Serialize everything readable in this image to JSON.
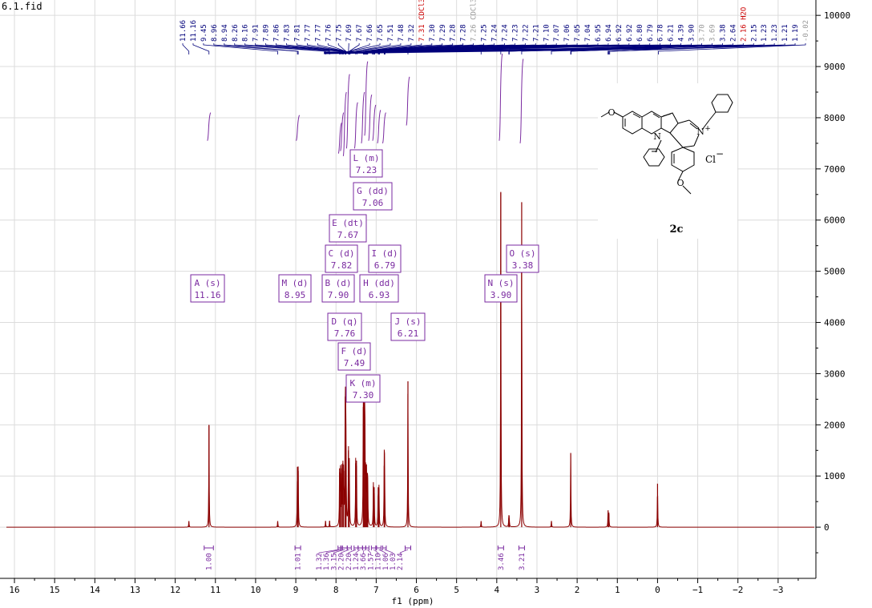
{
  "file_title": "6.1.fid",
  "chart_data": {
    "type": "line",
    "title": "6.1.fid",
    "xlabel": "f1 (ppm)",
    "ylabel": "",
    "xlim": [
      16.2,
      -3.9
    ],
    "x_reversed": true,
    "ylim": [
      -1000,
      10300
    ],
    "x_ticks": [
      16,
      15,
      14,
      13,
      12,
      11,
      10,
      9,
      8,
      7,
      6,
      5,
      4,
      3,
      2,
      1,
      0,
      -1,
      -2,
      -3
    ],
    "x_tick_labels": [
      "16",
      "15",
      "14",
      "13",
      "12",
      "11",
      "10",
      "9",
      "8",
      "7",
      "6",
      "5",
      "4",
      "3",
      "2",
      "1",
      "0",
      "−1",
      "−2",
      "−3"
    ],
    "y_ticks": [
      10000,
      9000,
      8000,
      7000,
      6000,
      5000,
      4000,
      3000,
      2000,
      1000,
      0
    ],
    "y_tick_labels": [
      "10000",
      "9000",
      "8000",
      "7000",
      "6000",
      "5000",
      "4000",
      "3000",
      "2000",
      "1000",
      "0"
    ],
    "grid": true,
    "colors": {
      "spectrum": "#8b0000",
      "integral": "#7a2aa0",
      "multiplet_box": "#7a2aa0",
      "peak_label": "#00007a",
      "peak_label_red": "#cc0000",
      "peak_label_gray": "#999999",
      "grid": "#dcdcdc"
    },
    "series": [
      {
        "peaks": [
          {
            "ppm": 11.66,
            "height": 120
          },
          {
            "ppm": 11.16,
            "height": 2000
          },
          {
            "ppm": 9.45,
            "height": 120
          },
          {
            "ppm": 8.96,
            "height": 1180
          },
          {
            "ppm": 8.94,
            "height": 1100
          },
          {
            "ppm": 8.26,
            "height": 120
          },
          {
            "ppm": 8.16,
            "height": 120
          },
          {
            "ppm": 7.91,
            "height": 1150
          },
          {
            "ppm": 7.89,
            "height": 1050
          },
          {
            "ppm": 7.86,
            "height": 1150
          },
          {
            "ppm": 7.83,
            "height": 1250
          },
          {
            "ppm": 7.81,
            "height": 1100
          },
          {
            "ppm": 7.77,
            "height": 2550
          },
          {
            "ppm": 7.76,
            "height": 1600
          },
          {
            "ppm": 7.75,
            "height": 1250
          },
          {
            "ppm": 7.69,
            "height": 1500
          },
          {
            "ppm": 7.67,
            "height": 1350
          },
          {
            "ppm": 7.51,
            "height": 1250
          },
          {
            "ppm": 7.49,
            "height": 1300
          },
          {
            "ppm": 7.32,
            "height": 2350
          },
          {
            "ppm": 7.31,
            "height": 1800
          },
          {
            "ppm": 7.29,
            "height": 2050
          },
          {
            "ppm": 7.28,
            "height": 1500
          },
          {
            "ppm": 7.26,
            "height": 1100
          },
          {
            "ppm": 7.24,
            "height": 950
          },
          {
            "ppm": 7.22,
            "height": 800
          },
          {
            "ppm": 7.21,
            "height": 700
          },
          {
            "ppm": 7.07,
            "height": 800
          },
          {
            "ppm": 7.05,
            "height": 780
          },
          {
            "ppm": 6.95,
            "height": 780
          },
          {
            "ppm": 6.93,
            "height": 760
          },
          {
            "ppm": 6.8,
            "height": 1200
          },
          {
            "ppm": 6.79,
            "height": 1100
          },
          {
            "ppm": 6.21,
            "height": 2850
          },
          {
            "ppm": 4.39,
            "height": 120
          },
          {
            "ppm": 3.9,
            "height": 6550
          },
          {
            "ppm": 3.7,
            "height": 180
          },
          {
            "ppm": 3.69,
            "height": 160
          },
          {
            "ppm": 3.38,
            "height": 6350
          },
          {
            "ppm": 2.64,
            "height": 120
          },
          {
            "ppm": 2.16,
            "height": 1450
          },
          {
            "ppm": 1.23,
            "height": 330
          },
          {
            "ppm": 1.21,
            "height": 260
          },
          {
            "ppm": 0.0,
            "height": 850
          }
        ]
      }
    ],
    "peak_labels": [
      {
        "text": "11.66",
        "ppm": 11.66,
        "color": "normal"
      },
      {
        "text": "11.16",
        "ppm": 11.16,
        "color": "normal"
      },
      {
        "text": "9.45",
        "ppm": 9.45,
        "color": "normal"
      },
      {
        "text": "8.96",
        "ppm": 8.96,
        "color": "normal"
      },
      {
        "text": "8.94",
        "ppm": 8.94,
        "color": "normal"
      },
      {
        "text": "8.26",
        "ppm": 8.26,
        "color": "normal"
      },
      {
        "text": "8.16",
        "ppm": 8.16,
        "color": "normal"
      },
      {
        "text": "7.91",
        "ppm": 7.91,
        "color": "normal"
      },
      {
        "text": "7.89",
        "ppm": 7.89,
        "color": "normal"
      },
      {
        "text": "7.86",
        "ppm": 7.86,
        "color": "normal"
      },
      {
        "text": "7.83",
        "ppm": 7.83,
        "color": "normal"
      },
      {
        "text": "7.81",
        "ppm": 7.81,
        "color": "normal"
      },
      {
        "text": "7.77",
        "ppm": 7.77,
        "color": "normal"
      },
      {
        "text": "7.77",
        "ppm": 7.77,
        "color": "normal"
      },
      {
        "text": "7.76",
        "ppm": 7.76,
        "color": "normal"
      },
      {
        "text": "7.75",
        "ppm": 7.75,
        "color": "normal"
      },
      {
        "text": "7.69",
        "ppm": 7.69,
        "color": "normal"
      },
      {
        "text": "7.67",
        "ppm": 7.67,
        "color": "normal"
      },
      {
        "text": "7.66",
        "ppm": 7.66,
        "color": "normal"
      },
      {
        "text": "7.65",
        "ppm": 7.65,
        "color": "normal"
      },
      {
        "text": "7.51",
        "ppm": 7.51,
        "color": "normal"
      },
      {
        "text": "7.48",
        "ppm": 7.48,
        "color": "normal"
      },
      {
        "text": "7.32",
        "ppm": 7.32,
        "color": "normal"
      },
      {
        "text": "7.31 CDCl3",
        "ppm": 7.31,
        "color": "red"
      },
      {
        "text": "7.30",
        "ppm": 7.3,
        "color": "normal"
      },
      {
        "text": "7.29",
        "ppm": 7.29,
        "color": "normal"
      },
      {
        "text": "7.28",
        "ppm": 7.28,
        "color": "normal"
      },
      {
        "text": "7.28",
        "ppm": 7.28,
        "color": "normal"
      },
      {
        "text": "7.26 CDCl3",
        "ppm": 7.26,
        "color": "gray"
      },
      {
        "text": "7.25",
        "ppm": 7.25,
        "color": "normal"
      },
      {
        "text": "7.24",
        "ppm": 7.24,
        "color": "normal"
      },
      {
        "text": "7.24",
        "ppm": 7.24,
        "color": "normal"
      },
      {
        "text": "7.23",
        "ppm": 7.23,
        "color": "normal"
      },
      {
        "text": "7.22",
        "ppm": 7.22,
        "color": "normal"
      },
      {
        "text": "7.21",
        "ppm": 7.21,
        "color": "normal"
      },
      {
        "text": "7.10",
        "ppm": 7.1,
        "color": "normal"
      },
      {
        "text": "7.07",
        "ppm": 7.07,
        "color": "normal"
      },
      {
        "text": "7.06",
        "ppm": 7.06,
        "color": "normal"
      },
      {
        "text": "7.05",
        "ppm": 7.05,
        "color": "normal"
      },
      {
        "text": "7.04",
        "ppm": 7.04,
        "color": "normal"
      },
      {
        "text": "6.95",
        "ppm": 6.95,
        "color": "normal"
      },
      {
        "text": "6.94",
        "ppm": 6.94,
        "color": "normal"
      },
      {
        "text": "6.92",
        "ppm": 6.92,
        "color": "normal"
      },
      {
        "text": "6.92",
        "ppm": 6.92,
        "color": "normal"
      },
      {
        "text": "6.80",
        "ppm": 6.8,
        "color": "normal"
      },
      {
        "text": "6.79",
        "ppm": 6.79,
        "color": "normal"
      },
      {
        "text": "6.78",
        "ppm": 6.78,
        "color": "normal"
      },
      {
        "text": "6.21",
        "ppm": 6.21,
        "color": "normal"
      },
      {
        "text": "4.39",
        "ppm": 4.39,
        "color": "normal"
      },
      {
        "text": "3.90",
        "ppm": 3.9,
        "color": "normal"
      },
      {
        "text": "3.70",
        "ppm": 3.7,
        "color": "gray"
      },
      {
        "text": "3.69",
        "ppm": 3.69,
        "color": "gray"
      },
      {
        "text": "3.38",
        "ppm": 3.38,
        "color": "normal"
      },
      {
        "text": "2.64",
        "ppm": 2.64,
        "color": "normal"
      },
      {
        "text": "2.16 H2O",
        "ppm": 2.16,
        "color": "red"
      },
      {
        "text": "2.15",
        "ppm": 2.15,
        "color": "normal"
      },
      {
        "text": "1.23",
        "ppm": 1.23,
        "color": "normal"
      },
      {
        "text": "1.23",
        "ppm": 1.23,
        "color": "normal"
      },
      {
        "text": "1.21",
        "ppm": 1.21,
        "color": "normal"
      },
      {
        "text": "1.19",
        "ppm": 1.19,
        "color": "normal"
      },
      {
        "text": "-0.02",
        "ppm": -0.02,
        "color": "gray"
      }
    ],
    "multiplets": [
      {
        "letter_line": "A (s)",
        "shift": "11.16"
      },
      {
        "letter_line": "M (d)",
        "shift": "8.95"
      },
      {
        "letter_line": "B (d)",
        "shift": "7.90"
      },
      {
        "letter_line": "C (d)",
        "shift": "7.82"
      },
      {
        "letter_line": "D (q)",
        "shift": "7.76"
      },
      {
        "letter_line": "E (dt)",
        "shift": "7.67"
      },
      {
        "letter_line": "F (d)",
        "shift": "7.49"
      },
      {
        "letter_line": "K (m)",
        "shift": "7.30"
      },
      {
        "letter_line": "L (m)",
        "shift": "7.23"
      },
      {
        "letter_line": "G (dd)",
        "shift": "7.06"
      },
      {
        "letter_line": "H (dd)",
        "shift": "6.93"
      },
      {
        "letter_line": "I (d)",
        "shift": "6.79"
      },
      {
        "letter_line": "J (s)",
        "shift": "6.21"
      },
      {
        "letter_line": "N (s)",
        "shift": "3.90"
      },
      {
        "letter_line": "O (s)",
        "shift": "3.38"
      }
    ],
    "integrals": [
      {
        "value": "1.00",
        "from": 11.28,
        "to": 11.05
      },
      {
        "value": "1.01",
        "from": 9.02,
        "to": 8.88
      },
      {
        "value": "1.32",
        "from": 7.95,
        "to": 7.88
      },
      {
        "value": "1.36",
        "from": 7.88,
        "to": 7.84
      },
      {
        "value": "3.15",
        "from": 7.84,
        "to": 7.72
      },
      {
        "value": "2.20",
        "from": 7.72,
        "to": 7.62
      },
      {
        "value": "2.20",
        "from": 7.55,
        "to": 7.45
      },
      {
        "value": "1.24",
        "from": 7.45,
        "to": 7.34
      },
      {
        "value": "3.66",
        "from": 7.34,
        "to": 7.26
      },
      {
        "value": "1.57",
        "from": 7.26,
        "to": 7.18
      },
      {
        "value": "1.10",
        "from": 7.12,
        "to": 7.01
      },
      {
        "value": "1.06",
        "from": 6.99,
        "to": 6.88
      },
      {
        "value": "1.03",
        "from": 6.84,
        "to": 6.75
      },
      {
        "value": "2.14",
        "from": 6.28,
        "to": 6.14
      },
      {
        "value": "3.46",
        "from": 3.97,
        "to": 3.83
      },
      {
        "value": "3.21",
        "from": 3.45,
        "to": 3.31
      }
    ]
  },
  "structure": {
    "compound_label": "2c",
    "counterion_label": "Cl",
    "charge_label": "−",
    "nitrogen_label": "N",
    "nitrogen_plus_label": "+",
    "n_pyrrole_label": "N"
  }
}
